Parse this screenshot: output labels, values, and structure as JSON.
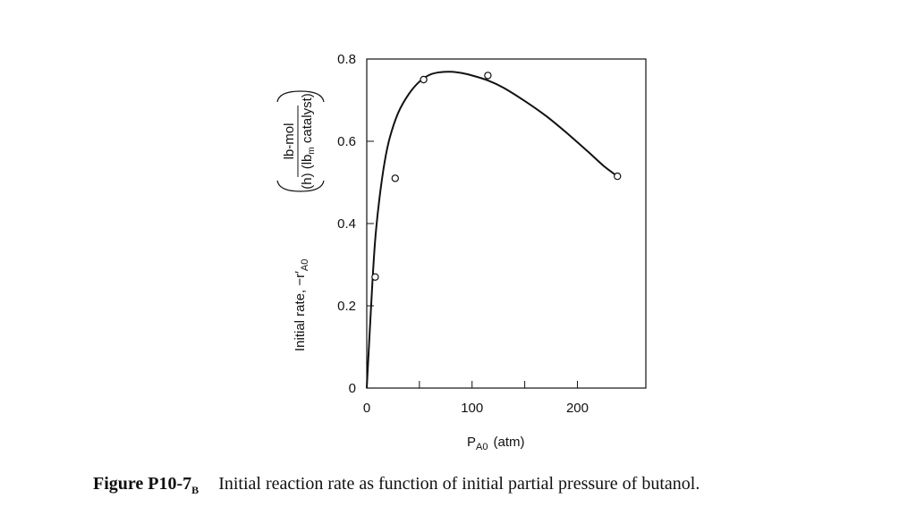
{
  "chart_data": {
    "type": "scatter",
    "xlabel": "P",
    "xlabel_sub": "A0",
    "xlabel_unit": "(atm)",
    "ylabel_prefix": "Initial rate, −r′",
    "ylabel_sub": "A0",
    "ylabel_frac_num": "lb-mol",
    "ylabel_frac_den_a": "(h) (lb",
    "ylabel_frac_den_sub": "m",
    "ylabel_frac_den_b": " catalyst)",
    "xlim": [
      0,
      265
    ],
    "ylim": [
      0,
      0.8
    ],
    "x_ticks": [
      0,
      50,
      100,
      150,
      200
    ],
    "x_tick_labels": [
      "0",
      "",
      "100",
      "",
      "200"
    ],
    "y_ticks": [
      0,
      0.2,
      0.4,
      0.6,
      0.8
    ],
    "y_tick_labels": [
      "0",
      "0.2",
      "0.4",
      "0.6",
      "0.8"
    ],
    "points": [
      {
        "x": 8,
        "y": 0.27
      },
      {
        "x": 27,
        "y": 0.51
      },
      {
        "x": 54,
        "y": 0.75
      },
      {
        "x": 115,
        "y": 0.76
      },
      {
        "x": 238,
        "y": 0.515
      }
    ],
    "fit_curve": [
      [
        0,
        0
      ],
      [
        5,
        0.24
      ],
      [
        8,
        0.36
      ],
      [
        12,
        0.46
      ],
      [
        17,
        0.55
      ],
      [
        22,
        0.61
      ],
      [
        30,
        0.67
      ],
      [
        40,
        0.715
      ],
      [
        50,
        0.745
      ],
      [
        60,
        0.762
      ],
      [
        70,
        0.768
      ],
      [
        80,
        0.769
      ],
      [
        90,
        0.766
      ],
      [
        100,
        0.76
      ],
      [
        115,
        0.748
      ],
      [
        130,
        0.73
      ],
      [
        150,
        0.698
      ],
      [
        170,
        0.662
      ],
      [
        190,
        0.62
      ],
      [
        210,
        0.575
      ],
      [
        225,
        0.54
      ],
      [
        238,
        0.515
      ]
    ]
  },
  "caption": {
    "figure_id": "Figure P10-7",
    "figure_id_sub": "B",
    "text": "Initial reaction rate as function of initial partial pressure of butanol."
  }
}
